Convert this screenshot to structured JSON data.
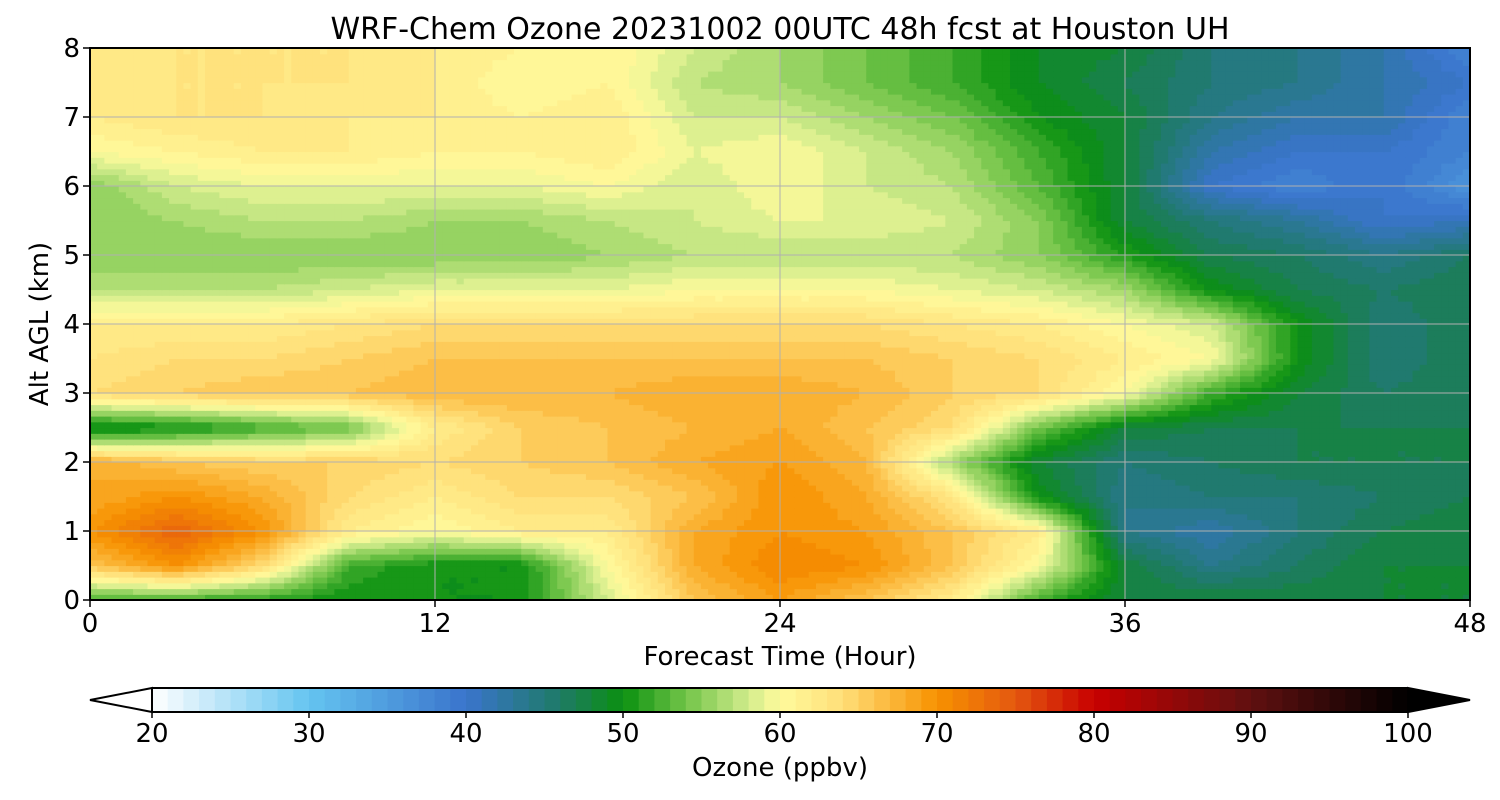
{
  "chart_data": {
    "type": "heatmap",
    "title": "WRF-Chem Ozone  20231002 00UTC 48h fcst at Houston UH",
    "xlabel": "Forecast Time (Hour)",
    "ylabel": "Alt AGL (km)",
    "xlim": [
      0,
      48
    ],
    "ylim": [
      0,
      8
    ],
    "xticks": [
      0,
      12,
      24,
      36,
      48
    ],
    "yticks": [
      0,
      1,
      2,
      3,
      4,
      5,
      6,
      7,
      8
    ],
    "grid": true,
    "x": [
      0,
      3,
      6,
      9,
      12,
      15,
      18,
      21,
      24,
      27,
      30,
      33,
      36,
      39,
      42,
      45,
      48
    ],
    "y": [
      0,
      0.5,
      1,
      1.5,
      2,
      2.5,
      3,
      3.5,
      4,
      4.5,
      5,
      5.5,
      6,
      6.5,
      7,
      7.5,
      8
    ],
    "z": [
      [
        52,
        52,
        51,
        50,
        50,
        50,
        58,
        66,
        69,
        66,
        62,
        52,
        48,
        48,
        48,
        48,
        48
      ],
      [
        66,
        70,
        64,
        52,
        50,
        50,
        60,
        68,
        71,
        70,
        66,
        60,
        48,
        44,
        46,
        48,
        48
      ],
      [
        70,
        74,
        70,
        62,
        60,
        62,
        62,
        68,
        70,
        69,
        66,
        62,
        44,
        42,
        45,
        47,
        48
      ],
      [
        68,
        70,
        68,
        64,
        62,
        64,
        64,
        66,
        70,
        68,
        63,
        50,
        44,
        45,
        45,
        46,
        47
      ],
      [
        68,
        66,
        65,
        65,
        64,
        65,
        66,
        68,
        69,
        67,
        56,
        48,
        45,
        46,
        47,
        47,
        47
      ],
      [
        49,
        50,
        52,
        54,
        62,
        65,
        66,
        67,
        68,
        66,
        64,
        54,
        48,
        47,
        47,
        47,
        47
      ],
      [
        64,
        65,
        66,
        66,
        67,
        67,
        67,
        68,
        68,
        67,
        65,
        64,
        60,
        52,
        48,
        46,
        47
      ],
      [
        63,
        64,
        64,
        65,
        66,
        66,
        66,
        66,
        66,
        66,
        65,
        64,
        62,
        60,
        50,
        45,
        47
      ],
      [
        62,
        62,
        62,
        63,
        64,
        64,
        64,
        64,
        64,
        64,
        63,
        62,
        60,
        58,
        50,
        45,
        47
      ],
      [
        57,
        57,
        57,
        58,
        59,
        59,
        59,
        60,
        60,
        60,
        59,
        58,
        56,
        50,
        47,
        46,
        47
      ],
      [
        55,
        55,
        55,
        55,
        55,
        55,
        56,
        57,
        57,
        57,
        57,
        55,
        51,
        47,
        46,
        44,
        46
      ],
      [
        55,
        56,
        57,
        57,
        56,
        56,
        57,
        58,
        59,
        59,
        58,
        55,
        48,
        45,
        43,
        40,
        41
      ],
      [
        55,
        58,
        59,
        59,
        59,
        59,
        60,
        58,
        60,
        58,
        57,
        53,
        48,
        40,
        38,
        40,
        36
      ],
      [
        60,
        61,
        62,
        62,
        61,
        61,
        62,
        59,
        60,
        58,
        56,
        52,
        48,
        42,
        40,
        40,
        38
      ],
      [
        62,
        63,
        63,
        62,
        62,
        61,
        62,
        58,
        58,
        56,
        54,
        50,
        48,
        44,
        42,
        42,
        38
      ],
      [
        62,
        63,
        63,
        63,
        62,
        60,
        61,
        57,
        56,
        54,
        52,
        49,
        47,
        45,
        44,
        42,
        40
      ],
      [
        62,
        63,
        63,
        63,
        62,
        61,
        61,
        58,
        56,
        54,
        52,
        49,
        48,
        45,
        44,
        42,
        38
      ]
    ],
    "colorbar": {
      "label": "Ozone  (ppbv)",
      "min": 20,
      "max": 100,
      "ticks": [
        20,
        30,
        40,
        50,
        60,
        70,
        80,
        90,
        100
      ],
      "extend": "both",
      "stops": [
        {
          "v": 20,
          "c": "#ffffff"
        },
        {
          "v": 30,
          "c": "#64c4f0"
        },
        {
          "v": 40,
          "c": "#3a74cc"
        },
        {
          "v": 46,
          "c": "#1e7a66"
        },
        {
          "v": 50,
          "c": "#0a9010"
        },
        {
          "v": 54,
          "c": "#72c448"
        },
        {
          "v": 58,
          "c": "#d2ec8c"
        },
        {
          "v": 60,
          "c": "#fffa9c"
        },
        {
          "v": 64,
          "c": "#ffde78"
        },
        {
          "v": 70,
          "c": "#f79200"
        },
        {
          "v": 75,
          "c": "#e45810"
        },
        {
          "v": 80,
          "c": "#c80000"
        },
        {
          "v": 90,
          "c": "#601010"
        },
        {
          "v": 100,
          "c": "#000000"
        }
      ]
    }
  }
}
